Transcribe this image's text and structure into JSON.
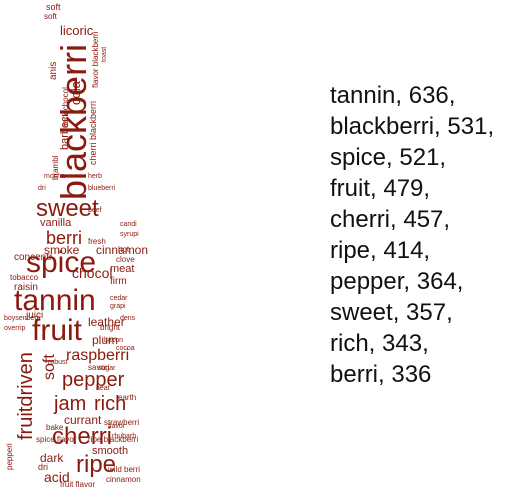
{
  "text_color": "#8B1A0E",
  "word_cloud": {
    "words": [
      "tannin",
      "blackberri",
      "spice",
      "fruit",
      "cherri",
      "ripe",
      "pepper",
      "sweet",
      "rich",
      "berri",
      "jam",
      "raspberri",
      "fruitdriven",
      "soft",
      "chocol",
      "plum",
      "currant",
      "acid",
      "smoke",
      "leather",
      "vanilla",
      "cinnamon",
      "smooth",
      "licoric",
      "cola",
      "barbecu",
      "meat",
      "firm",
      "raisin",
      "juici",
      "concentr",
      "dark",
      "strawberri",
      "dri",
      "tobacco",
      "blueberri",
      "earth",
      "herb",
      "mocha",
      "heat",
      "hot",
      "clove",
      "bright",
      "robust",
      "anis",
      "toast",
      "sugar",
      "fresh",
      "flavor",
      "bake",
      "savori",
      "wild berri",
      "spice flavor",
      "ripe blackberri",
      "fruit flavor",
      "dark chocol",
      "cherri blackberri",
      "flavor blackberri",
      "brambl",
      "pepperi",
      "boysenberri",
      "overrip",
      "bacon",
      "cedar",
      "grapi",
      "syrupi",
      "dens",
      "beef",
      "candi",
      "cocoa",
      "rhubarb"
    ]
  },
  "frequency_list": [
    {
      "word": "tannin",
      "count": 636
    },
    {
      "word": "blackberri",
      "count": 531
    },
    {
      "word": "spice",
      "count": 521
    },
    {
      "word": "fruit",
      "count": 479
    },
    {
      "word": "cherri",
      "count": 457
    },
    {
      "word": "ripe",
      "count": 414
    },
    {
      "word": "pepper",
      "count": 364
    },
    {
      "word": "sweet",
      "count": 357
    },
    {
      "word": "rich",
      "count": 343
    },
    {
      "word": "berri",
      "count": 336
    }
  ]
}
